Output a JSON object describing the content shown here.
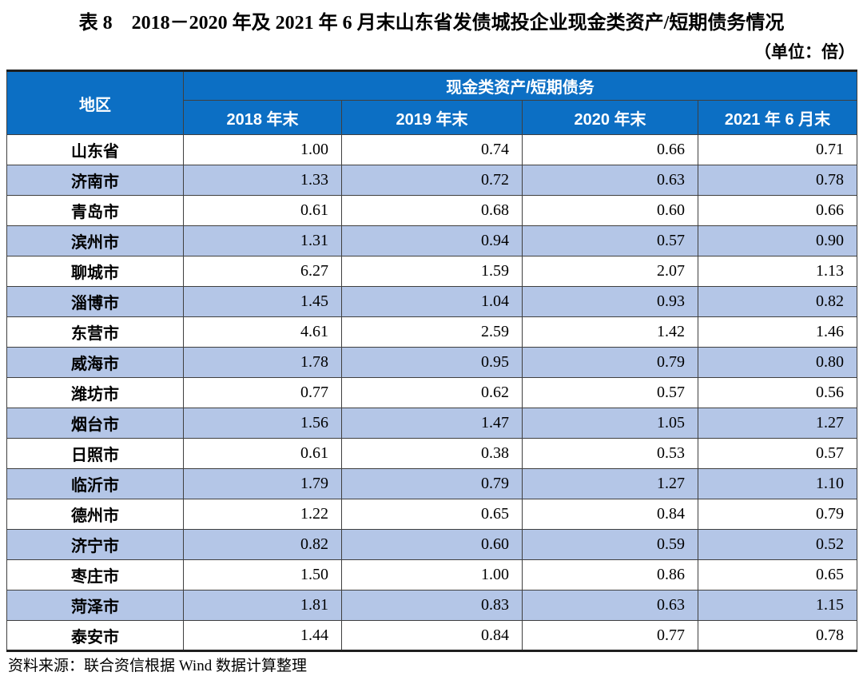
{
  "title": "表 8　2018－2020 年及 2021 年 6 月末山东省发债城投企业现金类资产/短期债务情况",
  "unit_note": "（单位：倍）",
  "table": {
    "region_header": "地区",
    "group_header": "现金类资产/短期债务",
    "period_headers": [
      "2018 年末",
      "2019 年末",
      "2020 年末",
      "2021 年 6 月末"
    ],
    "rows": [
      {
        "region": "山东省",
        "values": [
          "1.00",
          "0.74",
          "0.66",
          "0.71"
        ]
      },
      {
        "region": "济南市",
        "values": [
          "1.33",
          "0.72",
          "0.63",
          "0.78"
        ]
      },
      {
        "region": "青岛市",
        "values": [
          "0.61",
          "0.68",
          "0.60",
          "0.66"
        ]
      },
      {
        "region": "滨州市",
        "values": [
          "1.31",
          "0.94",
          "0.57",
          "0.90"
        ]
      },
      {
        "region": "聊城市",
        "values": [
          "6.27",
          "1.59",
          "2.07",
          "1.13"
        ]
      },
      {
        "region": "淄博市",
        "values": [
          "1.45",
          "1.04",
          "0.93",
          "0.82"
        ]
      },
      {
        "region": "东营市",
        "values": [
          "4.61",
          "2.59",
          "1.42",
          "1.46"
        ]
      },
      {
        "region": "威海市",
        "values": [
          "1.78",
          "0.95",
          "0.79",
          "0.80"
        ]
      },
      {
        "region": "潍坊市",
        "values": [
          "0.77",
          "0.62",
          "0.57",
          "0.56"
        ]
      },
      {
        "region": "烟台市",
        "values": [
          "1.56",
          "1.47",
          "1.05",
          "1.27"
        ]
      },
      {
        "region": "日照市",
        "values": [
          "0.61",
          "0.38",
          "0.53",
          "0.57"
        ]
      },
      {
        "region": "临沂市",
        "values": [
          "1.79",
          "0.79",
          "1.27",
          "1.10"
        ]
      },
      {
        "region": "德州市",
        "values": [
          "1.22",
          "0.65",
          "0.84",
          "0.79"
        ]
      },
      {
        "region": "济宁市",
        "values": [
          "0.82",
          "0.60",
          "0.59",
          "0.52"
        ]
      },
      {
        "region": "枣庄市",
        "values": [
          "1.50",
          "1.00",
          "0.86",
          "0.65"
        ]
      },
      {
        "region": "菏泽市",
        "values": [
          "1.81",
          "0.83",
          "0.63",
          "1.15"
        ]
      },
      {
        "region": "泰安市",
        "values": [
          "1.44",
          "0.84",
          "0.77",
          "0.78"
        ]
      }
    ]
  },
  "source_note": "资料来源：联合资信根据 Wind 数据计算整理",
  "colors": {
    "header_bg": "#0C6FC4",
    "band_bg": "#B4C6E7",
    "border": "#3F3F3F"
  }
}
